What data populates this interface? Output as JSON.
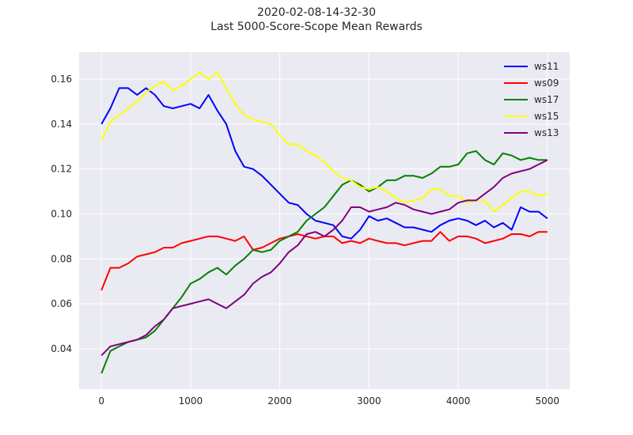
{
  "title": "2020-02-08-14-32-30",
  "subtitle": "Last 5000-Score-Scope Mean Rewards",
  "chart_data": {
    "type": "line",
    "title": "2020-02-08-14-32-30",
    "subtitle": "Last 5000-Score-Scope Mean Rewards",
    "xlabel": "",
    "ylabel": "",
    "xlim": [
      -250,
      5250
    ],
    "ylim": [
      0.022,
      0.172
    ],
    "xticks": [
      0,
      1000,
      2000,
      3000,
      4000,
      5000
    ],
    "xtick_labels": [
      "0",
      "1000",
      "2000",
      "3000",
      "4000",
      "5000"
    ],
    "yticks": [
      0.04,
      0.06,
      0.08,
      0.1,
      0.12,
      0.14,
      0.16
    ],
    "ytick_labels": [
      "0.04",
      "0.06",
      "0.08",
      "0.10",
      "0.12",
      "0.14",
      "0.16"
    ],
    "grid": true,
    "background": "#eaeaf2",
    "legend_position": "top-right",
    "x": [
      0,
      100,
      200,
      300,
      400,
      500,
      600,
      700,
      800,
      900,
      1000,
      1100,
      1200,
      1300,
      1400,
      1500,
      1600,
      1700,
      1800,
      1900,
      2000,
      2100,
      2200,
      2300,
      2400,
      2500,
      2600,
      2700,
      2800,
      2900,
      3000,
      3100,
      3200,
      3300,
      3400,
      3500,
      3600,
      3700,
      3800,
      3900,
      4000,
      4100,
      4200,
      4300,
      4400,
      4500,
      4600,
      4700,
      4800,
      4900,
      5000
    ],
    "series": [
      {
        "name": "ws11",
        "color": "#0000ff",
        "values": [
          0.14,
          0.147,
          0.156,
          0.156,
          0.153,
          0.156,
          0.153,
          0.148,
          0.147,
          0.148,
          0.149,
          0.147,
          0.153,
          0.146,
          0.14,
          0.128,
          0.121,
          0.12,
          0.117,
          0.113,
          0.109,
          0.105,
          0.104,
          0.1,
          0.097,
          0.096,
          0.095,
          0.09,
          0.089,
          0.093,
          0.099,
          0.097,
          0.098,
          0.096,
          0.094,
          0.094,
          0.093,
          0.092,
          0.095,
          0.097,
          0.098,
          0.097,
          0.095,
          0.097,
          0.094,
          0.096,
          0.093,
          0.103,
          0.101,
          0.101,
          0.098
        ]
      },
      {
        "name": "ws09",
        "color": "#ff0000",
        "values": [
          0.066,
          0.076,
          0.076,
          0.078,
          0.081,
          0.082,
          0.083,
          0.085,
          0.085,
          0.087,
          0.088,
          0.089,
          0.09,
          0.09,
          0.089,
          0.088,
          0.09,
          0.084,
          0.085,
          0.087,
          0.089,
          0.09,
          0.091,
          0.09,
          0.089,
          0.09,
          0.09,
          0.087,
          0.088,
          0.087,
          0.089,
          0.088,
          0.087,
          0.087,
          0.086,
          0.087,
          0.088,
          0.088,
          0.092,
          0.088,
          0.09,
          0.09,
          0.089,
          0.087,
          0.088,
          0.089,
          0.091,
          0.091,
          0.09,
          0.092,
          0.092
        ]
      },
      {
        "name": "ws17",
        "color": "#008000",
        "values": [
          0.029,
          0.039,
          0.041,
          0.043,
          0.044,
          0.045,
          0.048,
          0.053,
          0.058,
          0.063,
          0.069,
          0.071,
          0.074,
          0.076,
          0.073,
          0.077,
          0.08,
          0.084,
          0.083,
          0.084,
          0.088,
          0.09,
          0.092,
          0.097,
          0.1,
          0.103,
          0.108,
          0.113,
          0.115,
          0.113,
          0.11,
          0.112,
          0.115,
          0.115,
          0.117,
          0.117,
          0.116,
          0.118,
          0.121,
          0.121,
          0.122,
          0.127,
          0.128,
          0.124,
          0.122,
          0.127,
          0.126,
          0.124,
          0.125,
          0.124,
          0.124
        ]
      },
      {
        "name": "ws15",
        "color": "#ffff00",
        "values": [
          0.133,
          0.141,
          0.144,
          0.147,
          0.15,
          0.154,
          0.157,
          0.159,
          0.155,
          0.157,
          0.16,
          0.163,
          0.16,
          0.163,
          0.156,
          0.149,
          0.144,
          0.142,
          0.141,
          0.14,
          0.135,
          0.131,
          0.131,
          0.128,
          0.126,
          0.123,
          0.119,
          0.116,
          0.115,
          0.112,
          0.111,
          0.112,
          0.11,
          0.107,
          0.105,
          0.106,
          0.107,
          0.111,
          0.111,
          0.108,
          0.108,
          0.105,
          0.106,
          0.106,
          0.101,
          0.104,
          0.107,
          0.11,
          0.11,
          0.108,
          0.109
        ]
      },
      {
        "name": "ws13",
        "color": "#800080",
        "values": [
          0.037,
          0.041,
          0.042,
          0.043,
          0.044,
          0.046,
          0.05,
          0.053,
          0.058,
          0.059,
          0.06,
          0.061,
          0.062,
          0.06,
          0.058,
          0.061,
          0.064,
          0.069,
          0.072,
          0.074,
          0.078,
          0.083,
          0.086,
          0.091,
          0.092,
          0.09,
          0.093,
          0.097,
          0.103,
          0.103,
          0.101,
          0.102,
          0.103,
          0.105,
          0.104,
          0.102,
          0.101,
          0.1,
          0.101,
          0.102,
          0.105,
          0.106,
          0.106,
          0.109,
          0.112,
          0.116,
          0.118,
          0.119,
          0.12,
          0.122,
          0.124
        ]
      }
    ]
  }
}
